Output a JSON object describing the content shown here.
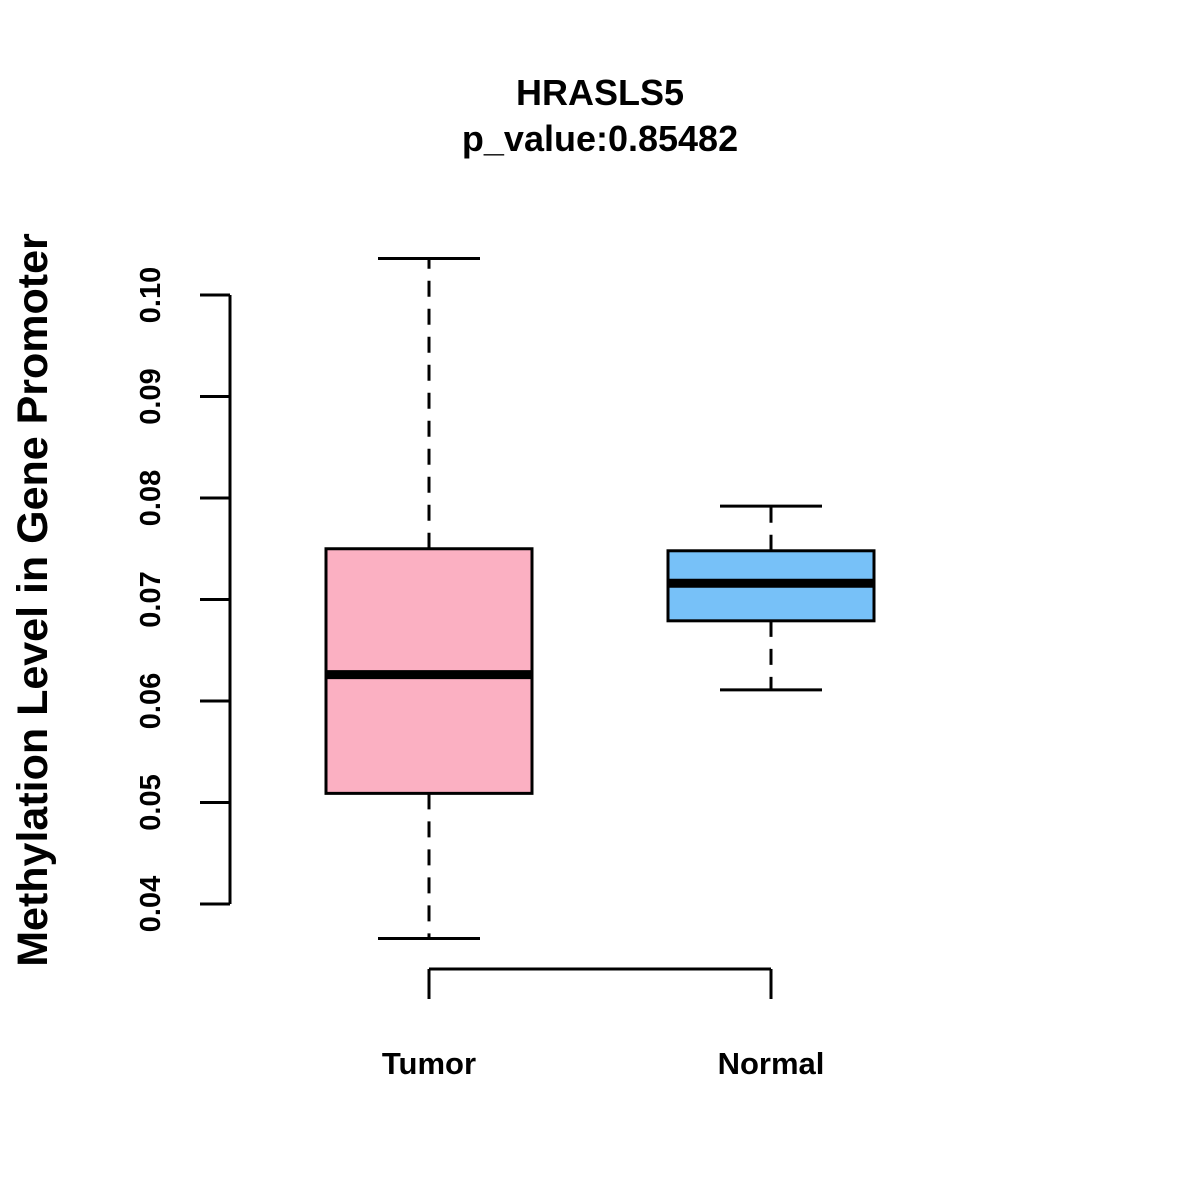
{
  "chart_data": {
    "type": "boxplot",
    "title": "HRASLS5",
    "subtitle": "p_value:0.85482",
    "xlabel": "",
    "ylabel": "Methylation Level in Gene Promoter",
    "ylim": [
      0.04,
      0.1
    ],
    "yticks": [
      0.04,
      0.05,
      0.06,
      0.07,
      0.08,
      0.09,
      0.1
    ],
    "ytick_labels": [
      "0.04",
      "0.05",
      "0.06",
      "0.07",
      "0.08",
      "0.09",
      "0.10"
    ],
    "categories": [
      "Tumor",
      "Normal"
    ],
    "series": [
      {
        "name": "Tumor",
        "color": "#FBB0C2",
        "whisker_low": 0.0366,
        "q1": 0.0509,
        "median": 0.0626,
        "q3": 0.075,
        "whisker_high": 0.1036
      },
      {
        "name": "Normal",
        "color": "#77C1F8",
        "whisker_low": 0.0611,
        "q1": 0.0679,
        "median": 0.0716,
        "q3": 0.0748,
        "whisker_high": 0.0792
      }
    ],
    "grid": false,
    "legend": "none"
  }
}
